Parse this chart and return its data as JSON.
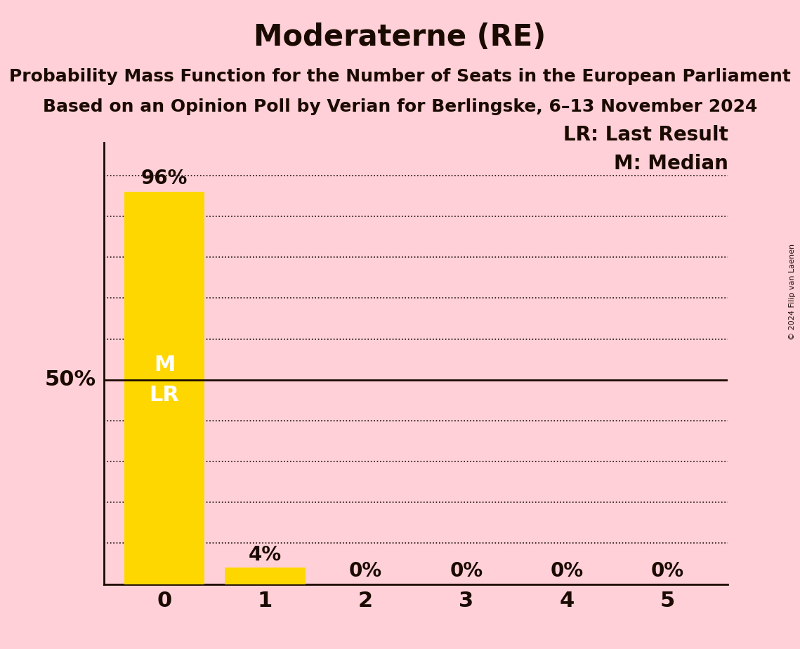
{
  "title": "Moderaterne (RE)",
  "subtitle1": "Probability Mass Function for the Number of Seats in the European Parliament",
  "subtitle2": "Based on an Opinion Poll by Verian for Berlingske, 6–13 November 2024",
  "copyright": "© 2024 Filip van Laenen",
  "seats": [
    0,
    1,
    2,
    3,
    4,
    5
  ],
  "probabilities": [
    0.96,
    0.04,
    0.0,
    0.0,
    0.0,
    0.0
  ],
  "bar_color": "#FFD700",
  "background_color": "#FFD0D8",
  "bar_label_color": "#1a0a00",
  "bar_inner_label_color": "#FFFFFF",
  "median": 0,
  "last_result": 0,
  "fifty_pct_line": 0.5,
  "ylabel_50": "50%",
  "grid_color": "#1a0a00",
  "axis_color": "#1a0a00",
  "title_fontsize": 30,
  "subtitle_fontsize": 18,
  "label_fontsize": 22,
  "tick_fontsize": 22,
  "legend_fontsize": 20,
  "bar_label_fontsize": 20,
  "inner_label_fontsize": 22,
  "ylim": [
    0,
    1.08
  ],
  "legend_lr": "LR: Last Result",
  "legend_m": "M: Median",
  "inner_label": "M\nLR"
}
